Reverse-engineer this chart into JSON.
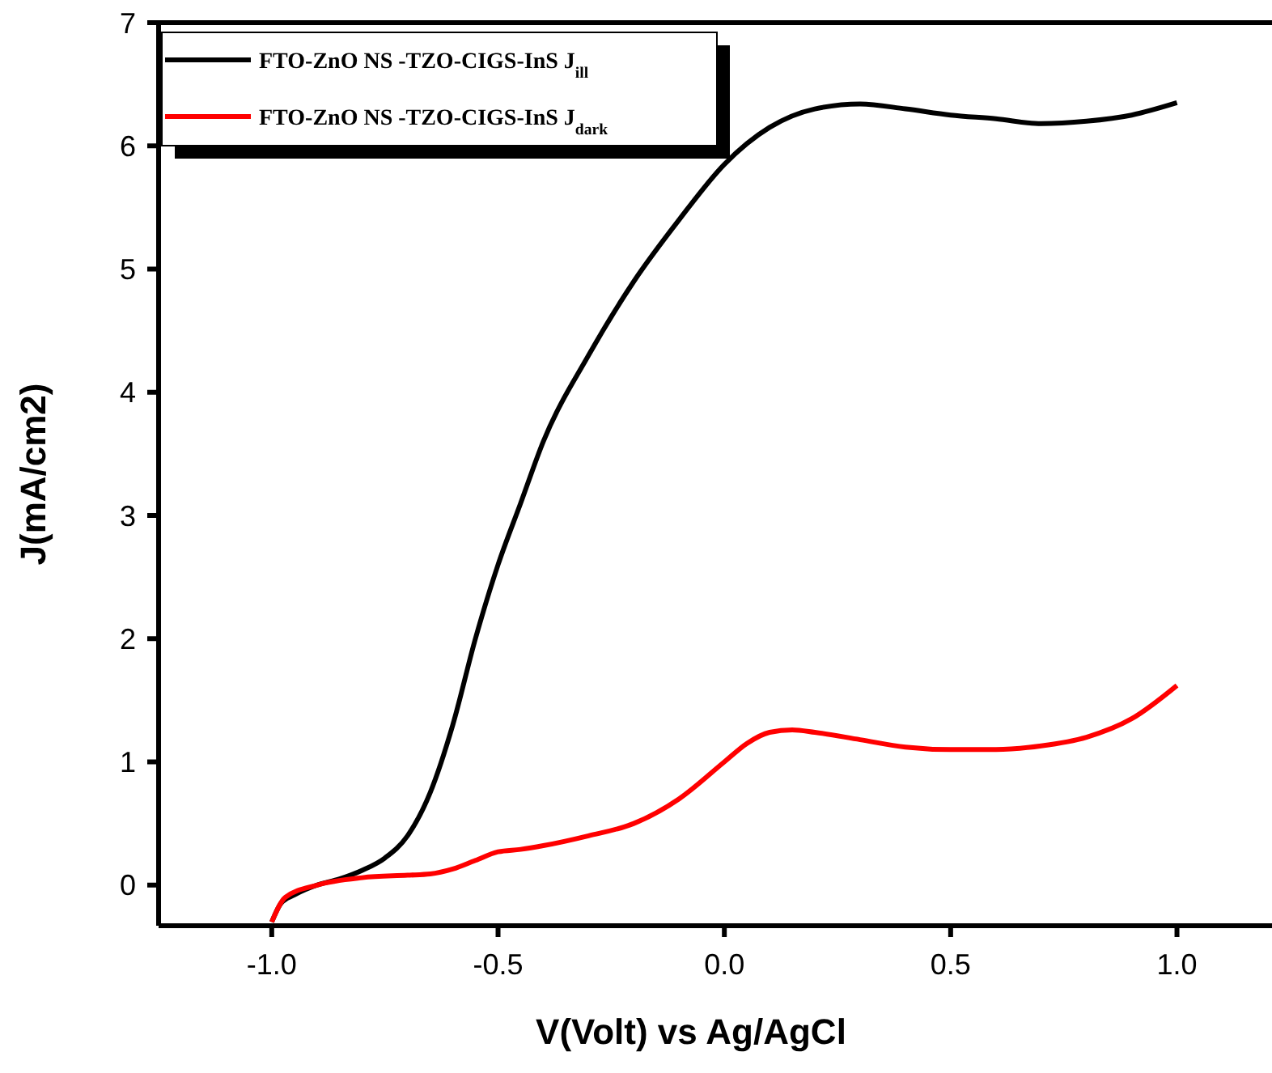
{
  "chart_data": {
    "type": "line",
    "xlabel": "V(Volt) vs Ag/AgCl",
    "ylabel": "J(mA/cm2)",
    "xlim": [
      -1.25,
      1.21
    ],
    "ylim": [
      -0.33,
      7
    ],
    "xticks": [
      {
        "value": -1,
        "label": "-1.0"
      },
      {
        "value": -0.5,
        "label": "-0.5"
      },
      {
        "value": 0,
        "label": "0.0"
      },
      {
        "value": 0.5,
        "label": "0.5"
      },
      {
        "value": 1,
        "label": "1.0"
      }
    ],
    "yticks": [
      0,
      1,
      2,
      3,
      4,
      5,
      6,
      7
    ],
    "legend": "top left",
    "grid": false,
    "marker": "none",
    "line_style": "solid",
    "series": [
      {
        "name": "FTO-ZnO NS -TZO-CIGS-InS J$_{ill}$",
        "color": "#000000",
        "x": [
          -1.0,
          -0.98,
          -0.95,
          -0.9,
          -0.85,
          -0.8,
          -0.75,
          -0.7,
          -0.65,
          -0.6,
          -0.55,
          -0.5,
          -0.45,
          -0.4,
          -0.3,
          -0.2,
          -0.1,
          0,
          0.1,
          0.2,
          0.3,
          0.4,
          0.5,
          0.6,
          0.7,
          0.8,
          0.9,
          1.0
        ],
        "values": [
          -0.3,
          -0.15,
          -0.08,
          0.0,
          0.05,
          0.12,
          0.22,
          0.4,
          0.75,
          1.3,
          2.0,
          2.6,
          3.1,
          3.6,
          4.3,
          4.9,
          5.4,
          5.85,
          6.15,
          6.3,
          6.34,
          6.3,
          6.25,
          6.22,
          6.18,
          6.2,
          6.25,
          6.35
        ]
      },
      {
        "name": "FTO-ZnO NS -TZO-CIGS-InS J$_{dark}$",
        "color": "#ff0000",
        "x": [
          -1.0,
          -0.97,
          -0.9,
          -0.8,
          -0.7,
          -0.65,
          -0.6,
          -0.55,
          -0.5,
          -0.45,
          -0.4,
          -0.3,
          -0.2,
          -0.1,
          0,
          0.05,
          0.1,
          0.15,
          0.2,
          0.3,
          0.4,
          0.5,
          0.6,
          0.7,
          0.8,
          0.9,
          1.0
        ],
        "values": [
          -0.3,
          -0.1,
          0.0,
          0.06,
          0.08,
          0.09,
          0.13,
          0.2,
          0.27,
          0.29,
          0.32,
          0.4,
          0.5,
          0.7,
          1.0,
          1.15,
          1.24,
          1.26,
          1.24,
          1.18,
          1.12,
          1.1,
          1.1,
          1.13,
          1.2,
          1.35,
          1.62
        ]
      }
    ]
  }
}
